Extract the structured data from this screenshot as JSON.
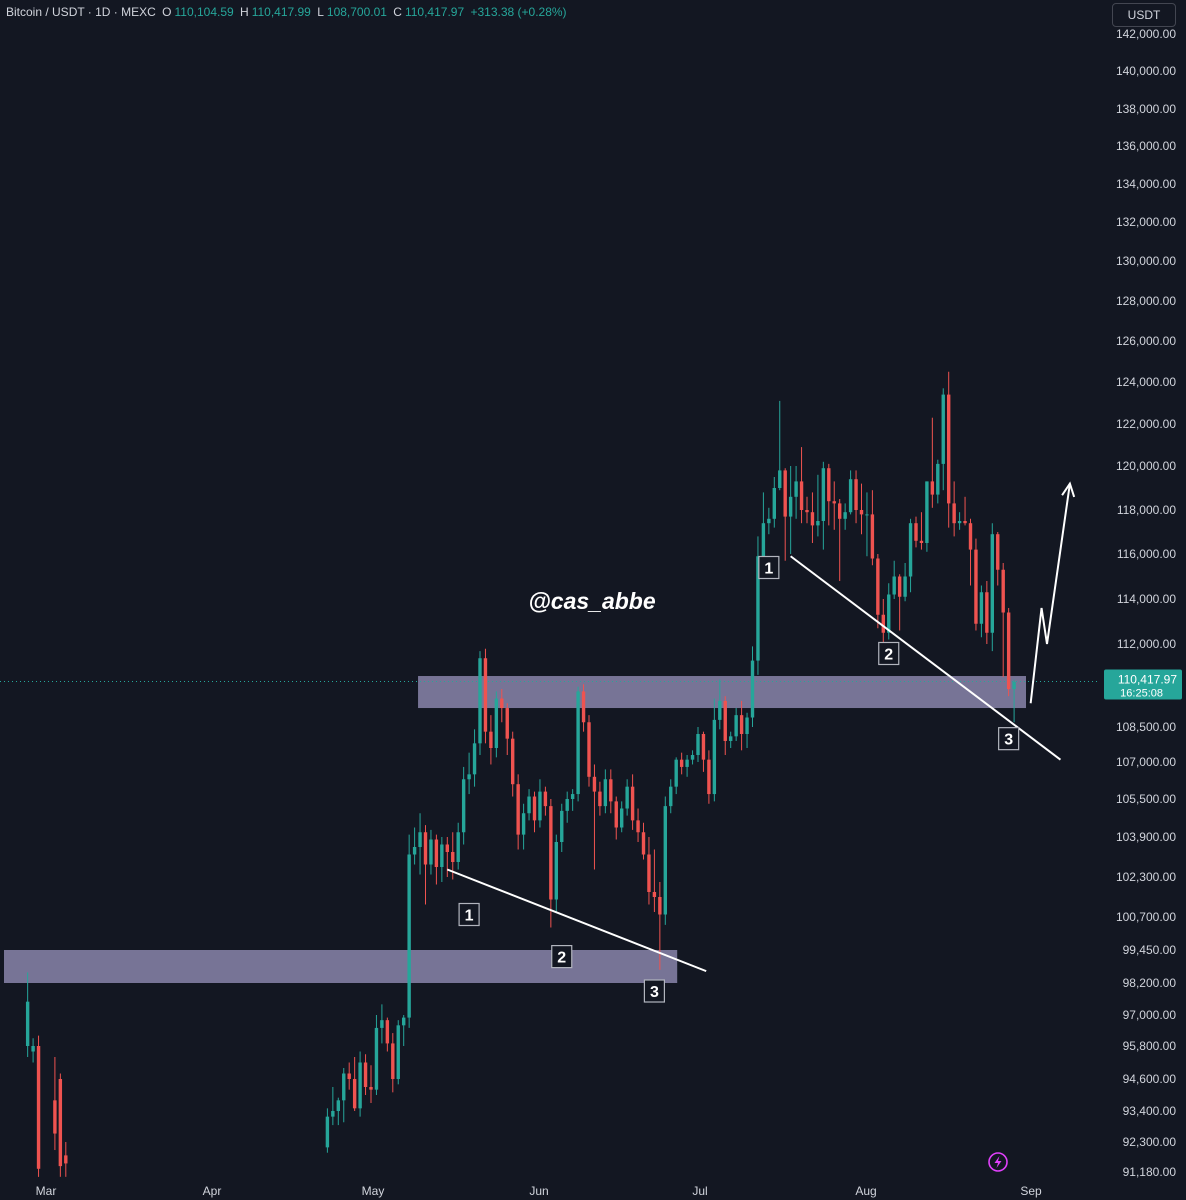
{
  "header": {
    "symbol": "Bitcoin / USDT · 1D · MEXC",
    "open_label": "O",
    "open": "110,104.59",
    "high_label": "H",
    "high": "110,417.99",
    "low_label": "L",
    "low": "108,700.01",
    "close_label": "C",
    "close": "110,417.97",
    "change": "+313.38 (+0.28%)",
    "currency": "USDT"
  },
  "colors": {
    "background": "#131722",
    "up": "#26a69a",
    "down": "#ef5350",
    "zone": "#9e98c4",
    "annotation": "#ffffff",
    "axis_text": "#d1d4dc"
  },
  "chart_data": {
    "type": "candlestick",
    "title": "Bitcoin / USDT · 1D · MEXC",
    "xlabel": "",
    "ylabel": "",
    "x_ticks": [
      "Mar",
      "Apr",
      "May",
      "Jun",
      "Jul",
      "Aug",
      "Sep"
    ],
    "y_ticks": [
      "142,000.00",
      "140,000.00",
      "138,000.00",
      "136,000.00",
      "134,000.00",
      "132,000.00",
      "130,000.00",
      "128,000.00",
      "126,000.00",
      "124,000.00",
      "122,000.00",
      "120,000.00",
      "118,000.00",
      "116,000.00",
      "114,000.00",
      "112,000.00",
      "108,500.00",
      "107,000.00",
      "105,500.00",
      "103,900.00",
      "102,300.00",
      "100,700.00",
      "99,450.00",
      "98,200.00",
      "97,000.00",
      "95,800.00",
      "94,600.00",
      "93,400.00",
      "92,300.00",
      "91,180.00"
    ],
    "ylim": [
      91180,
      142000
    ],
    "last_price": {
      "value": "110,417.97",
      "countdown": "16:25:08"
    },
    "watermark": "@cas_abbe",
    "zones": [
      {
        "from": 109300,
        "to": 110650,
        "start": "May 9",
        "end": "Aug 28"
      },
      {
        "from": 98200,
        "to": 99450,
        "start": "Feb 26",
        "end": "Jun 25"
      }
    ],
    "pattern_labels": [
      "1",
      "2",
      "3",
      "1",
      "2",
      "3"
    ],
    "trendlines": [
      {
        "from": [
          "May 14",
          102600
        ],
        "to": [
          "Jun 25",
          98650
        ]
      },
      {
        "from": [
          "Jul 16",
          115900
        ],
        "to": [
          "Aug 29",
          107100
        ]
      }
    ],
    "projection": [
      [
        "Aug 25",
        109500
      ],
      [
        "Aug 27",
        113600
      ],
      [
        "Aug 28",
        112000
      ],
      [
        "Aug 30",
        119200
      ]
    ],
    "candles": [
      {
        "date": "Feb 26",
        "o": 95800,
        "h": 98600,
        "l": 95400,
        "c": 97500
      },
      {
        "date": "Feb 27",
        "o": 95600,
        "h": 96100,
        "l": 95200,
        "c": 95800
      },
      {
        "date": "Feb 28",
        "o": 95800,
        "h": 96200,
        "l": 91000,
        "c": 91300
      },
      {
        "date": "Mar 03",
        "o": 93800,
        "h": 95400,
        "l": 92000,
        "c": 92600
      },
      {
        "date": "Mar 04",
        "o": 94600,
        "h": 94800,
        "l": 91000,
        "c": 91400
      },
      {
        "date": "Mar 05",
        "o": 91800,
        "h": 92300,
        "l": 91000,
        "c": 91500
      },
      {
        "date": "Apr 22",
        "o": 92100,
        "h": 93500,
        "l": 91900,
        "c": 93200
      },
      {
        "date": "Apr 23",
        "o": 93200,
        "h": 94300,
        "l": 92900,
        "c": 93400
      },
      {
        "date": "Apr 24",
        "o": 93400,
        "h": 93900,
        "l": 92900,
        "c": 93800
      },
      {
        "date": "Apr 25",
        "o": 93800,
        "h": 95000,
        "l": 93000,
        "c": 94800
      },
      {
        "date": "Apr 26",
        "o": 94800,
        "h": 95200,
        "l": 94200,
        "c": 94600
      },
      {
        "date": "Apr 27",
        "o": 94600,
        "h": 95400,
        "l": 93400,
        "c": 93500
      },
      {
        "date": "Apr 28",
        "o": 93500,
        "h": 95600,
        "l": 93200,
        "c": 95200
      },
      {
        "date": "Apr 29",
        "o": 95200,
        "h": 95500,
        "l": 94000,
        "c": 94300
      },
      {
        "date": "Apr 30",
        "o": 94300,
        "h": 95100,
        "l": 93700,
        "c": 94200
      },
      {
        "date": "May 01",
        "o": 94200,
        "h": 97000,
        "l": 94000,
        "c": 96500
      },
      {
        "date": "May 02",
        "o": 96500,
        "h": 97400,
        "l": 95900,
        "c": 96800
      },
      {
        "date": "May 03",
        "o": 96800,
        "h": 96900,
        "l": 95600,
        "c": 95900
      },
      {
        "date": "May 04",
        "o": 95900,
        "h": 96300,
        "l": 94100,
        "c": 94600
      },
      {
        "date": "May 05",
        "o": 94600,
        "h": 96800,
        "l": 94400,
        "c": 96600
      },
      {
        "date": "May 06",
        "o": 96600,
        "h": 97000,
        "l": 95800,
        "c": 96900
      },
      {
        "date": "May 07",
        "o": 96900,
        "h": 104000,
        "l": 96500,
        "c": 103200
      },
      {
        "date": "May 08",
        "o": 103200,
        "h": 104300,
        "l": 102800,
        "c": 103500
      },
      {
        "date": "May 09",
        "o": 103500,
        "h": 104900,
        "l": 102400,
        "c": 104100
      },
      {
        "date": "May 10",
        "o": 104100,
        "h": 104400,
        "l": 101200,
        "c": 102800
      },
      {
        "date": "May 11",
        "o": 102800,
        "h": 104200,
        "l": 102400,
        "c": 103800
      },
      {
        "date": "May 12",
        "o": 103800,
        "h": 104000,
        "l": 102000,
        "c": 102700
      },
      {
        "date": "May 13",
        "o": 102700,
        "h": 103900,
        "l": 102100,
        "c": 103600
      },
      {
        "date": "May 14",
        "o": 103600,
        "h": 103900,
        "l": 102300,
        "c": 103300
      },
      {
        "date": "May 15",
        "o": 103300,
        "h": 104100,
        "l": 102200,
        "c": 102900
      },
      {
        "date": "May 16",
        "o": 102900,
        "h": 104500,
        "l": 102600,
        "c": 104100
      },
      {
        "date": "May 17",
        "o": 104100,
        "h": 106800,
        "l": 103600,
        "c": 106300
      },
      {
        "date": "May 18",
        "o": 106300,
        "h": 107400,
        "l": 105700,
        "c": 106500
      },
      {
        "date": "May 19",
        "o": 106500,
        "h": 108400,
        "l": 106000,
        "c": 107800
      },
      {
        "date": "May 20",
        "o": 107800,
        "h": 111700,
        "l": 107300,
        "c": 111400
      },
      {
        "date": "May 21",
        "o": 111400,
        "h": 111800,
        "l": 107800,
        "c": 108300
      },
      {
        "date": "May 22",
        "o": 108300,
        "h": 109000,
        "l": 106900,
        "c": 107600
      },
      {
        "date": "May 23",
        "o": 107600,
        "h": 110000,
        "l": 107200,
        "c": 109700
      },
      {
        "date": "May 24",
        "o": 109700,
        "h": 110100,
        "l": 108700,
        "c": 109300
      },
      {
        "date": "May 25",
        "o": 109300,
        "h": 109500,
        "l": 107300,
        "c": 108000
      },
      {
        "date": "May 26",
        "o": 108000,
        "h": 108300,
        "l": 105600,
        "c": 106100
      },
      {
        "date": "May 27",
        "o": 106100,
        "h": 106500,
        "l": 103400,
        "c": 104000
      },
      {
        "date": "May 28",
        "o": 104000,
        "h": 105300,
        "l": 103400,
        "c": 104900
      },
      {
        "date": "May 29",
        "o": 104900,
        "h": 105900,
        "l": 104600,
        "c": 105600
      },
      {
        "date": "May 30",
        "o": 105600,
        "h": 105800,
        "l": 104100,
        "c": 104600
      },
      {
        "date": "May 31",
        "o": 104600,
        "h": 106300,
        "l": 104300,
        "c": 105800
      },
      {
        "date": "Jun 01",
        "o": 105800,
        "h": 106000,
        "l": 104800,
        "c": 105200
      },
      {
        "date": "Jun 02",
        "o": 105200,
        "h": 105500,
        "l": 100300,
        "c": 101400
      },
      {
        "date": "Jun 03",
        "o": 101400,
        "h": 104000,
        "l": 100900,
        "c": 103700
      },
      {
        "date": "Jun 04",
        "o": 103700,
        "h": 105300,
        "l": 103300,
        "c": 105000
      },
      {
        "date": "Jun 05",
        "o": 105000,
        "h": 105800,
        "l": 104500,
        "c": 105500
      },
      {
        "date": "Jun 06",
        "o": 105500,
        "h": 105900,
        "l": 105000,
        "c": 105700
      },
      {
        "date": "Jun 07",
        "o": 105700,
        "h": 110200,
        "l": 105400,
        "c": 110000
      },
      {
        "date": "Jun 08",
        "o": 110000,
        "h": 110300,
        "l": 108300,
        "c": 108700
      },
      {
        "date": "Jun 09",
        "o": 108700,
        "h": 109000,
        "l": 106000,
        "c": 106400
      },
      {
        "date": "Jun 10",
        "o": 106400,
        "h": 106900,
        "l": 102600,
        "c": 105800
      },
      {
        "date": "Jun 11",
        "o": 105800,
        "h": 106200,
        "l": 104800,
        "c": 105200
      },
      {
        "date": "Jun 12",
        "o": 105200,
        "h": 106700,
        "l": 104900,
        "c": 106300
      },
      {
        "date": "Jun 13",
        "o": 106300,
        "h": 106700,
        "l": 104900,
        "c": 105400
      },
      {
        "date": "Jun 14",
        "o": 105400,
        "h": 105600,
        "l": 103800,
        "c": 104300
      },
      {
        "date": "Jun 15",
        "o": 104300,
        "h": 105400,
        "l": 104100,
        "c": 105100
      },
      {
        "date": "Jun 16",
        "o": 105100,
        "h": 106300,
        "l": 104800,
        "c": 106000
      },
      {
        "date": "Jun 17",
        "o": 106000,
        "h": 106500,
        "l": 104200,
        "c": 104600
      },
      {
        "date": "Jun 18",
        "o": 104600,
        "h": 105100,
        "l": 103700,
        "c": 104100
      },
      {
        "date": "Jun 19",
        "o": 104100,
        "h": 104500,
        "l": 103000,
        "c": 103200
      },
      {
        "date": "Jun 20",
        "o": 103200,
        "h": 103900,
        "l": 101200,
        "c": 101700
      },
      {
        "date": "Jun 21",
        "o": 101700,
        "h": 103400,
        "l": 100900,
        "c": 101500
      },
      {
        "date": "Jun 22",
        "o": 101500,
        "h": 102100,
        "l": 98700,
        "c": 100800
      },
      {
        "date": "Jun 23",
        "o": 100800,
        "h": 105600,
        "l": 100400,
        "c": 105200
      },
      {
        "date": "Jun 24",
        "o": 105200,
        "h": 106300,
        "l": 104900,
        "c": 106000
      },
      {
        "date": "Jun 25",
        "o": 106000,
        "h": 107200,
        "l": 105700,
        "c": 107100
      },
      {
        "date": "Jun 26",
        "o": 107100,
        "h": 107400,
        "l": 106500,
        "c": 106800
      },
      {
        "date": "Jun 27",
        "o": 106800,
        "h": 107300,
        "l": 106400,
        "c": 107100
      },
      {
        "date": "Jun 28",
        "o": 107100,
        "h": 107500,
        "l": 106900,
        "c": 107300
      },
      {
        "date": "Jun 29",
        "o": 107300,
        "h": 108500,
        "l": 107000,
        "c": 108200
      },
      {
        "date": "Jun 30",
        "o": 108200,
        "h": 108300,
        "l": 106600,
        "c": 107100
      },
      {
        "date": "Jul 01",
        "o": 107100,
        "h": 107500,
        "l": 105300,
        "c": 105700
      },
      {
        "date": "Jul 02",
        "o": 105700,
        "h": 109700,
        "l": 105400,
        "c": 108800
      },
      {
        "date": "Jul 03",
        "o": 108800,
        "h": 110500,
        "l": 108400,
        "c": 109600
      },
      {
        "date": "Jul 04",
        "o": 109600,
        "h": 109800,
        "l": 107300,
        "c": 107900
      },
      {
        "date": "Jul 05",
        "o": 107900,
        "h": 108300,
        "l": 107600,
        "c": 108100
      },
      {
        "date": "Jul 06",
        "o": 108100,
        "h": 109300,
        "l": 107900,
        "c": 109000
      },
      {
        "date": "Jul 07",
        "o": 109000,
        "h": 109600,
        "l": 107500,
        "c": 108200
      },
      {
        "date": "Jul 08",
        "o": 108200,
        "h": 109100,
        "l": 107600,
        "c": 108900
      },
      {
        "date": "Jul 09",
        "o": 108900,
        "h": 111900,
        "l": 108500,
        "c": 111300
      },
      {
        "date": "Jul 10",
        "o": 111300,
        "h": 116800,
        "l": 110700,
        "c": 115900
      },
      {
        "date": "Jul 11",
        "o": 115900,
        "h": 118800,
        "l": 115200,
        "c": 117400
      },
      {
        "date": "Jul 12",
        "o": 117400,
        "h": 118100,
        "l": 116900,
        "c": 117600
      },
      {
        "date": "Jul 13",
        "o": 117600,
        "h": 119500,
        "l": 117200,
        "c": 119000
      },
      {
        "date": "Jul 14",
        "o": 119000,
        "h": 123100,
        "l": 118900,
        "c": 119800
      },
      {
        "date": "Jul 15",
        "o": 119800,
        "h": 119900,
        "l": 115700,
        "c": 117700
      },
      {
        "date": "Jul 16",
        "o": 117700,
        "h": 120000,
        "l": 116000,
        "c": 118600
      },
      {
        "date": "Jul 17",
        "o": 118600,
        "h": 120000,
        "l": 117600,
        "c": 119300
      },
      {
        "date": "Jul 18",
        "o": 119300,
        "h": 120900,
        "l": 117400,
        "c": 118000
      },
      {
        "date": "Jul 19",
        "o": 118000,
        "h": 118600,
        "l": 117400,
        "c": 117900
      },
      {
        "date": "Jul 20",
        "o": 117900,
        "h": 118800,
        "l": 116500,
        "c": 117300
      },
      {
        "date": "Jul 21",
        "o": 117300,
        "h": 119600,
        "l": 116800,
        "c": 117500
      },
      {
        "date": "Jul 22",
        "o": 117500,
        "h": 120200,
        "l": 116200,
        "c": 119900
      },
      {
        "date": "Jul 23",
        "o": 119900,
        "h": 120100,
        "l": 117300,
        "c": 118400
      },
      {
        "date": "Jul 24",
        "o": 118400,
        "h": 119300,
        "l": 117100,
        "c": 118300
      },
      {
        "date": "Jul 25",
        "o": 118300,
        "h": 118500,
        "l": 114800,
        "c": 117600
      },
      {
        "date": "Jul 26",
        "o": 117600,
        "h": 118300,
        "l": 117100,
        "c": 117900
      },
      {
        "date": "Jul 27",
        "o": 117900,
        "h": 119800,
        "l": 117800,
        "c": 119400
      },
      {
        "date": "Jul 28",
        "o": 119400,
        "h": 119800,
        "l": 117400,
        "c": 118000
      },
      {
        "date": "Jul 29",
        "o": 118000,
        "h": 119200,
        "l": 116900,
        "c": 117800
      },
      {
        "date": "Jul 30",
        "o": 117800,
        "h": 118800,
        "l": 115900,
        "c": 117800
      },
      {
        "date": "Jul 31",
        "o": 117800,
        "h": 118900,
        "l": 115500,
        "c": 115800
      },
      {
        "date": "Aug 01",
        "o": 115800,
        "h": 116000,
        "l": 112700,
        "c": 113300
      },
      {
        "date": "Aug 02",
        "o": 113300,
        "h": 114000,
        "l": 112000,
        "c": 112500
      },
      {
        "date": "Aug 03",
        "o": 112500,
        "h": 114700,
        "l": 112200,
        "c": 114200
      },
      {
        "date": "Aug 04",
        "o": 114200,
        "h": 115700,
        "l": 114000,
        "c": 115000
      },
      {
        "date": "Aug 05",
        "o": 115000,
        "h": 115100,
        "l": 112600,
        "c": 114100
      },
      {
        "date": "Aug 06",
        "o": 114100,
        "h": 115600,
        "l": 113900,
        "c": 115000
      },
      {
        "date": "Aug 07",
        "o": 115000,
        "h": 117600,
        "l": 114300,
        "c": 117400
      },
      {
        "date": "Aug 08",
        "o": 117400,
        "h": 117700,
        "l": 116300,
        "c": 116600
      },
      {
        "date": "Aug 09",
        "o": 116600,
        "h": 117900,
        "l": 116200,
        "c": 116500
      },
      {
        "date": "Aug 10",
        "o": 116500,
        "h": 119300,
        "l": 116100,
        "c": 119300
      },
      {
        "date": "Aug 11",
        "o": 119300,
        "h": 122300,
        "l": 118100,
        "c": 118700
      },
      {
        "date": "Aug 12",
        "o": 118700,
        "h": 120300,
        "l": 118300,
        "c": 120100
      },
      {
        "date": "Aug 13",
        "o": 120100,
        "h": 123700,
        "l": 118900,
        "c": 123400
      },
      {
        "date": "Aug 14",
        "o": 123400,
        "h": 124500,
        "l": 117200,
        "c": 118300
      },
      {
        "date": "Aug 15",
        "o": 118300,
        "h": 119300,
        "l": 116800,
        "c": 117400
      },
      {
        "date": "Aug 16",
        "o": 117400,
        "h": 117900,
        "l": 117100,
        "c": 117500
      },
      {
        "date": "Aug 17",
        "o": 117500,
        "h": 118600,
        "l": 117300,
        "c": 117400
      },
      {
        "date": "Aug 18",
        "o": 117400,
        "h": 117600,
        "l": 114600,
        "c": 116200
      },
      {
        "date": "Aug 19",
        "o": 116200,
        "h": 116700,
        "l": 112600,
        "c": 112900
      },
      {
        "date": "Aug 20",
        "o": 112900,
        "h": 114600,
        "l": 112300,
        "c": 114300
      },
      {
        "date": "Aug 21",
        "o": 114300,
        "h": 114800,
        "l": 112000,
        "c": 112500
      },
      {
        "date": "Aug 22",
        "o": 112500,
        "h": 117400,
        "l": 111700,
        "c": 116900
      },
      {
        "date": "Aug 23",
        "o": 116900,
        "h": 117000,
        "l": 114600,
        "c": 115300
      },
      {
        "date": "Aug 24",
        "o": 115300,
        "h": 115600,
        "l": 110600,
        "c": 113400
      },
      {
        "date": "Aug 25",
        "o": 113400,
        "h": 113600,
        "l": 109800,
        "c": 110100
      },
      {
        "date": "Aug 26",
        "o": 110100,
        "h": 110500,
        "l": 108700,
        "c": 110400
      }
    ]
  }
}
